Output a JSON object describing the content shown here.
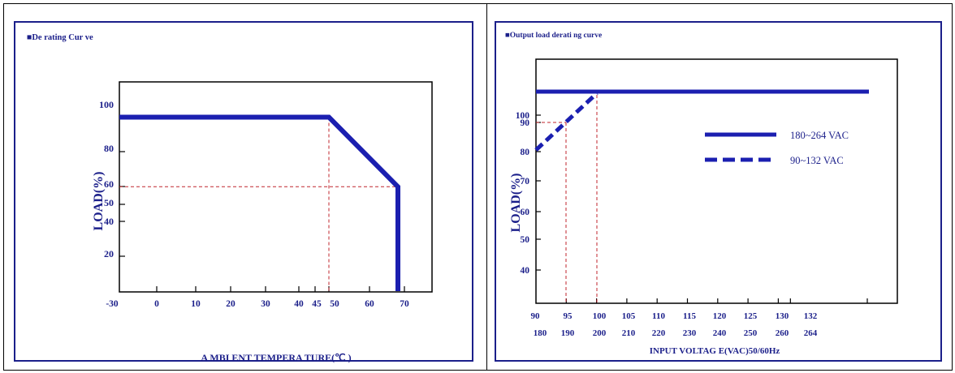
{
  "colors": {
    "frame": "#1b1f8a",
    "series": "#1b1fb0",
    "guide": "#c0262d",
    "text": "#1b1f8a"
  },
  "chart_data": [
    {
      "type": "line",
      "title": "■De rating Cur ve",
      "xlabel": "A MBI ENT TEMPERA TURE(℃ )",
      "ylabel": "LOAD(%)",
      "xticks": [
        "-30",
        "0",
        "10",
        "20",
        "30",
        "40",
        "45",
        "50",
        "60",
        "70"
      ],
      "yticks": [
        "100",
        "80",
        "60",
        "50",
        "40",
        "20"
      ],
      "series": [
        {
          "x": [
            "-30",
            "50",
            "70",
            "70"
          ],
          "values": [
            100,
            100,
            60,
            0
          ]
        }
      ],
      "guides": [
        {
          "x": "50",
          "from_y": 0,
          "to_y": 100
        },
        {
          "y": 60,
          "from_x": "-30",
          "to_x": "70"
        }
      ]
    },
    {
      "type": "line",
      "title": "■Output load derati ng curve",
      "xlabel": "INPUT VOLTAG E(VAC)50/60Hz",
      "ylabel": "LOAD(%)",
      "xticks": [
        "90",
        "95",
        "100",
        "105",
        "110",
        "115",
        "120",
        "125",
        "130",
        "132"
      ],
      "xticks2": [
        "180",
        "190",
        "200",
        "210",
        "220",
        "230",
        "240",
        "250",
        "260",
        "264"
      ],
      "yticks": [
        "100",
        "90",
        "80",
        "70",
        "60",
        "50",
        "40"
      ],
      "series": [
        {
          "name": "180~264 VAC",
          "style": "solid",
          "x": [
            90,
            132
          ],
          "values": [
            100,
            100
          ]
        },
        {
          "name": "90~132 VAC",
          "style": "dashed",
          "x": [
            90,
            100
          ],
          "values": [
            80,
            100
          ]
        }
      ],
      "guides": [
        {
          "x": 95,
          "from_y": 90
        },
        {
          "x": 100,
          "from_y": 100
        },
        {
          "y": 90,
          "from_x": 90,
          "to_x": 95
        }
      ]
    }
  ]
}
